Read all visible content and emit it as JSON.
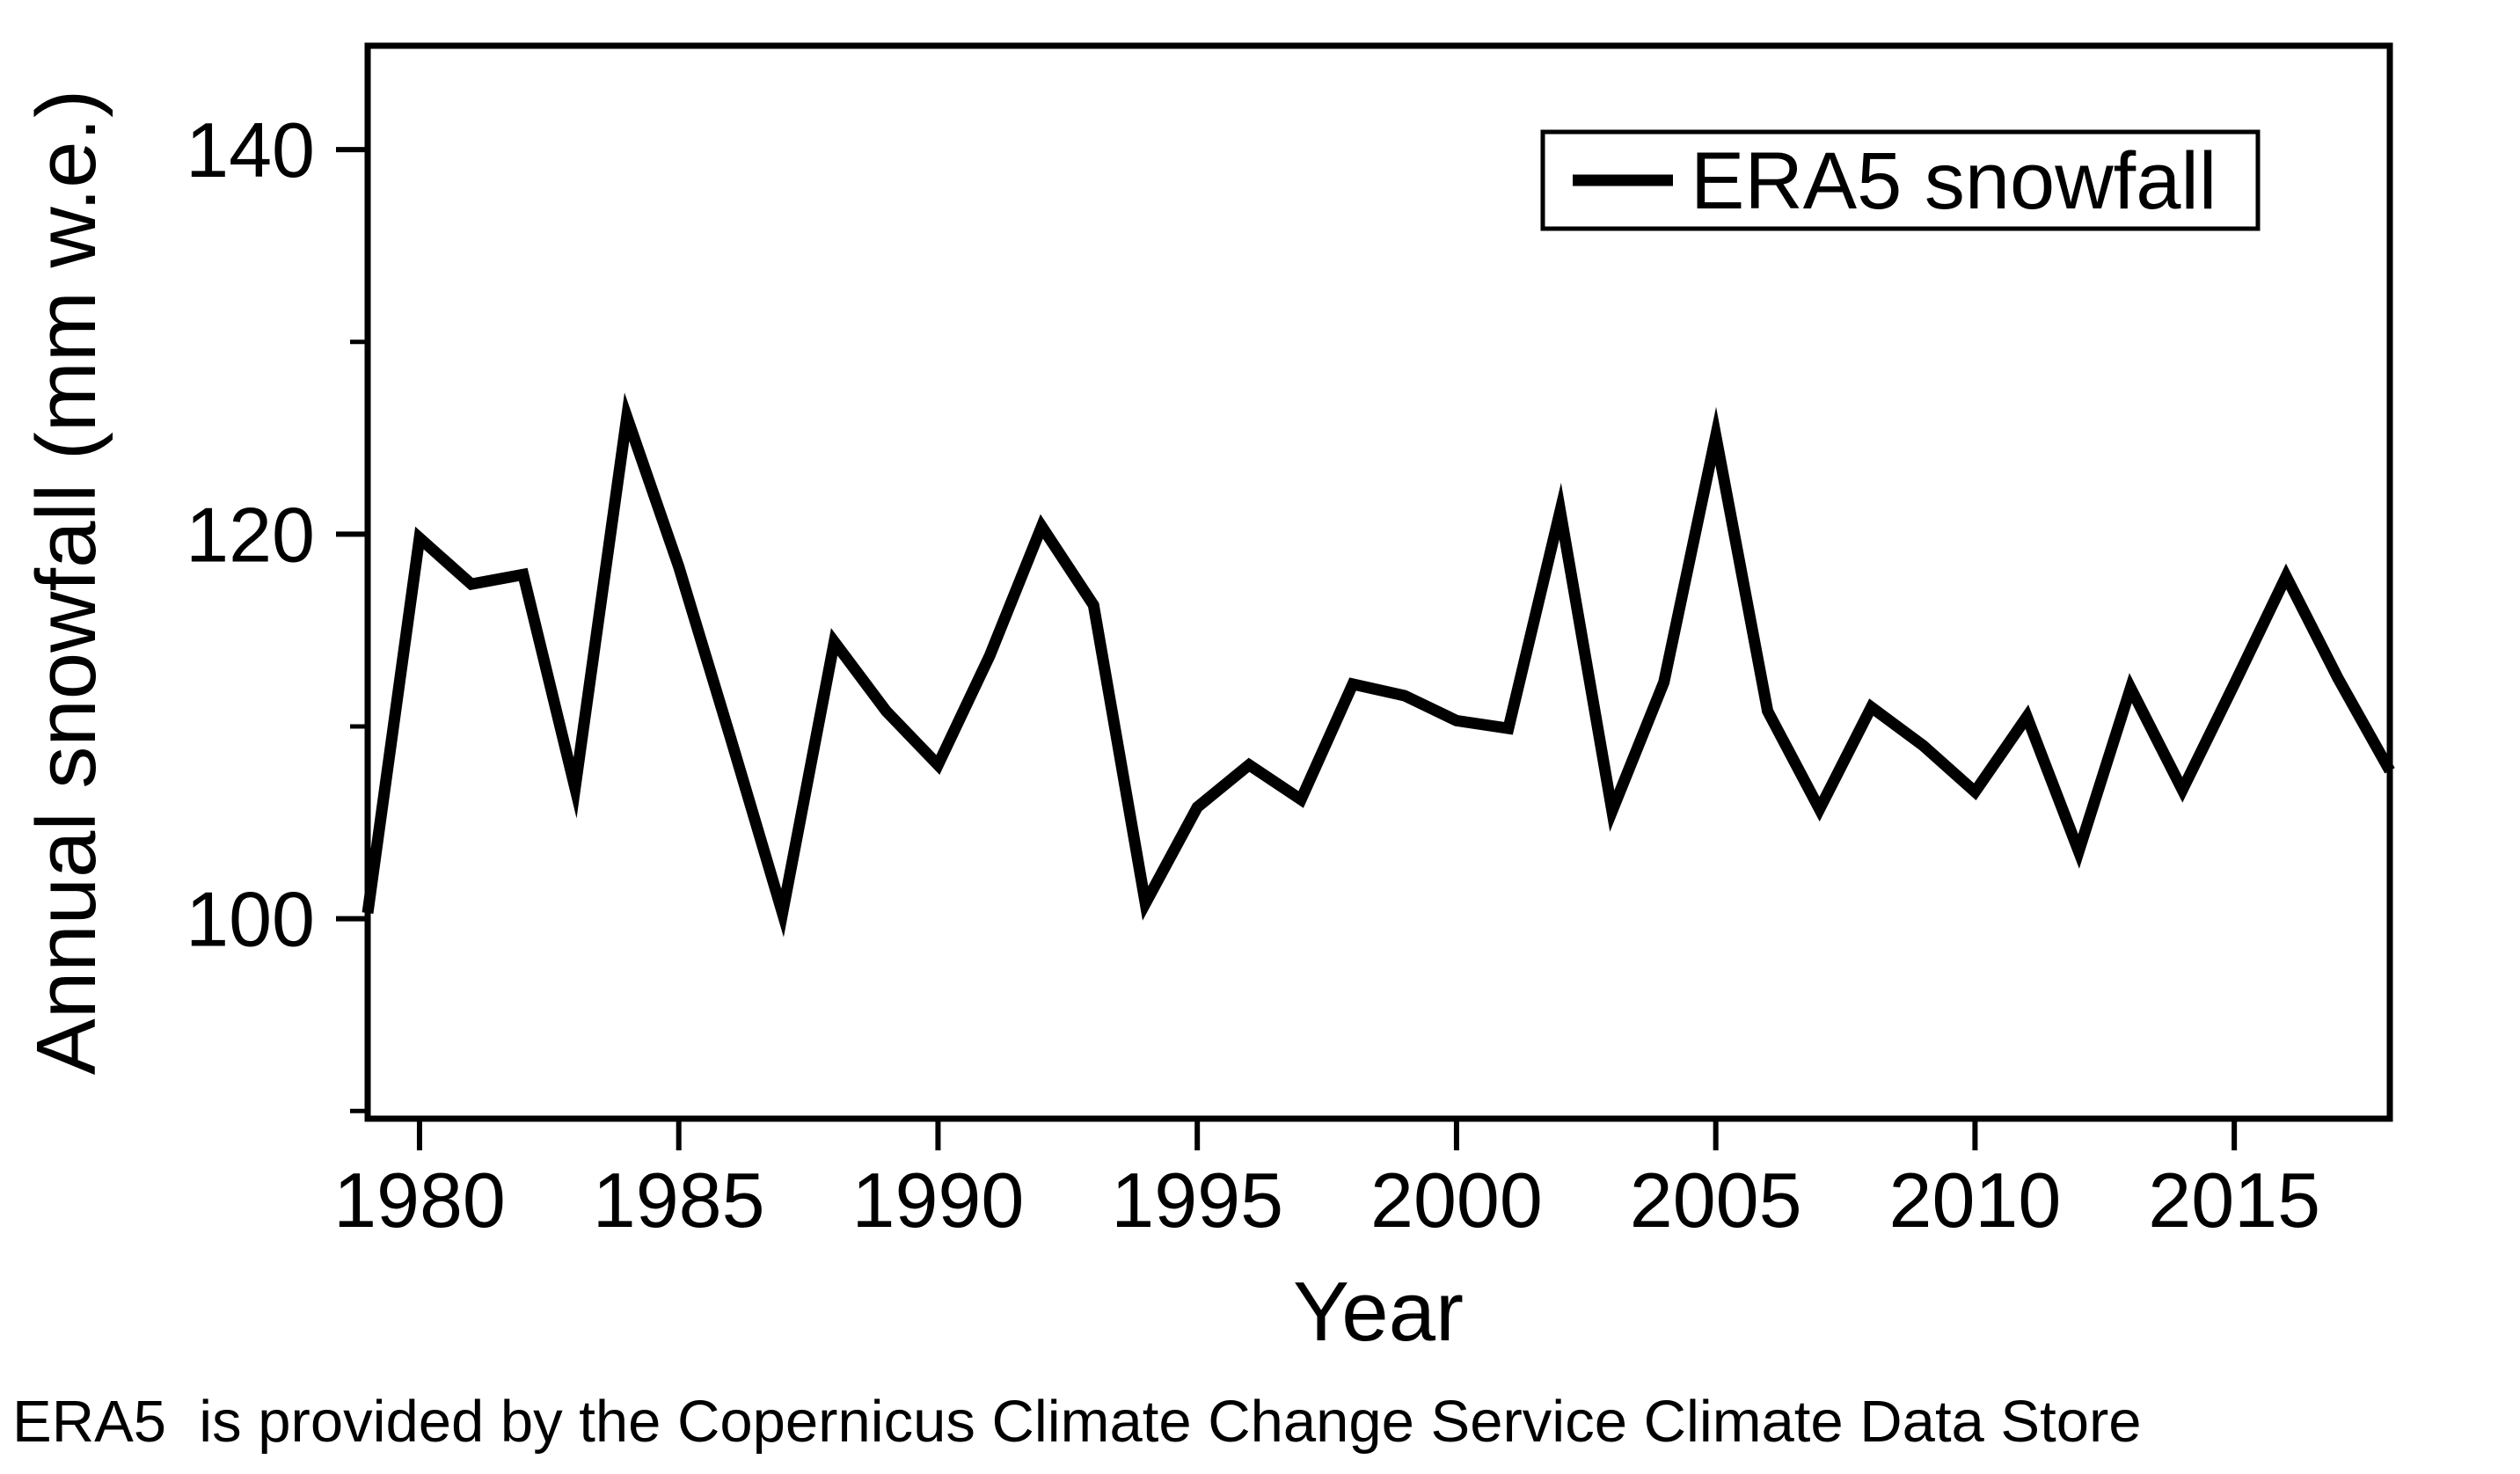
{
  "figure": {
    "caption": "ERA5  is provided by the Copernicus Climate Change Service Climate Data Store"
  },
  "chart_data": {
    "type": "line",
    "title": "",
    "xlabel": "Year",
    "ylabel": "Annual snowfall (mm w.e.)",
    "legend_entries": [
      {
        "label": "ERA5 snowfall",
        "color": "#000000"
      }
    ],
    "legend_position": "top-right",
    "grid": false,
    "line_color": "#000000",
    "axis_color": "#000000",
    "xlim": [
      1979,
      2018
    ],
    "ylim": [
      89.6,
      145.4
    ],
    "x_ticks": [
      1980,
      1985,
      1990,
      1995,
      2000,
      2005,
      2010,
      2015
    ],
    "y_ticks": [
      100,
      120,
      140
    ],
    "y_minor_ticks": [
      90,
      110,
      130
    ],
    "x": [
      1979,
      1980,
      1981,
      1982,
      1983,
      1984,
      1985,
      1986,
      1987,
      1988,
      1989,
      1990,
      1991,
      1992,
      1993,
      1994,
      1995,
      1996,
      1997,
      1998,
      1999,
      2000,
      2001,
      2002,
      2003,
      2004,
      2005,
      2006,
      2007,
      2008,
      2009,
      2010,
      2011,
      2012,
      2013,
      2014,
      2015,
      2016,
      2017,
      2018
    ],
    "series": [
      {
        "name": "ERA5 snowfall",
        "values": [
          100.3,
          119.8,
          117.4,
          117.9,
          106.8,
          126.1,
          118.3,
          109.4,
          100.3,
          114.4,
          110.8,
          108.0,
          113.7,
          120.4,
          116.3,
          100.8,
          105.8,
          108.0,
          106.2,
          112.2,
          111.6,
          110.3,
          109.9,
          121.2,
          105.6,
          112.3,
          125.1,
          110.8,
          105.7,
          111.0,
          109.0,
          106.6,
          110.5,
          103.5,
          112.0,
          106.7,
          112.2,
          117.8,
          112.5,
          107.7
        ]
      }
    ]
  }
}
